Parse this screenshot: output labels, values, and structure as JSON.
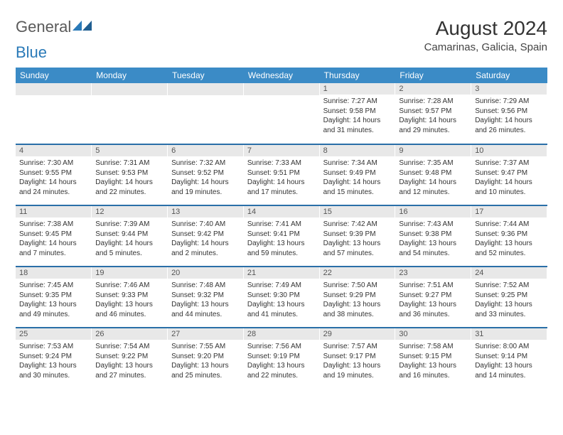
{
  "brand": {
    "part1": "General",
    "part2": "Blue"
  },
  "title": "August 2024",
  "location": "Camarinas, Galicia, Spain",
  "colors": {
    "header_blue": "#3b8bc6",
    "divider_blue": "#2a6fa8",
    "daynum_bg": "#e8e8e8",
    "text": "#333333"
  },
  "weekdays": [
    "Sunday",
    "Monday",
    "Tuesday",
    "Wednesday",
    "Thursday",
    "Friday",
    "Saturday"
  ],
  "weeks": [
    [
      null,
      null,
      null,
      null,
      {
        "n": "1",
        "sr": "7:27 AM",
        "ss": "9:58 PM",
        "dl": "14 hours and 31 minutes."
      },
      {
        "n": "2",
        "sr": "7:28 AM",
        "ss": "9:57 PM",
        "dl": "14 hours and 29 minutes."
      },
      {
        "n": "3",
        "sr": "7:29 AM",
        "ss": "9:56 PM",
        "dl": "14 hours and 26 minutes."
      }
    ],
    [
      {
        "n": "4",
        "sr": "7:30 AM",
        "ss": "9:55 PM",
        "dl": "14 hours and 24 minutes."
      },
      {
        "n": "5",
        "sr": "7:31 AM",
        "ss": "9:53 PM",
        "dl": "14 hours and 22 minutes."
      },
      {
        "n": "6",
        "sr": "7:32 AM",
        "ss": "9:52 PM",
        "dl": "14 hours and 19 minutes."
      },
      {
        "n": "7",
        "sr": "7:33 AM",
        "ss": "9:51 PM",
        "dl": "14 hours and 17 minutes."
      },
      {
        "n": "8",
        "sr": "7:34 AM",
        "ss": "9:49 PM",
        "dl": "14 hours and 15 minutes."
      },
      {
        "n": "9",
        "sr": "7:35 AM",
        "ss": "9:48 PM",
        "dl": "14 hours and 12 minutes."
      },
      {
        "n": "10",
        "sr": "7:37 AM",
        "ss": "9:47 PM",
        "dl": "14 hours and 10 minutes."
      }
    ],
    [
      {
        "n": "11",
        "sr": "7:38 AM",
        "ss": "9:45 PM",
        "dl": "14 hours and 7 minutes."
      },
      {
        "n": "12",
        "sr": "7:39 AM",
        "ss": "9:44 PM",
        "dl": "14 hours and 5 minutes."
      },
      {
        "n": "13",
        "sr": "7:40 AM",
        "ss": "9:42 PM",
        "dl": "14 hours and 2 minutes."
      },
      {
        "n": "14",
        "sr": "7:41 AM",
        "ss": "9:41 PM",
        "dl": "13 hours and 59 minutes."
      },
      {
        "n": "15",
        "sr": "7:42 AM",
        "ss": "9:39 PM",
        "dl": "13 hours and 57 minutes."
      },
      {
        "n": "16",
        "sr": "7:43 AM",
        "ss": "9:38 PM",
        "dl": "13 hours and 54 minutes."
      },
      {
        "n": "17",
        "sr": "7:44 AM",
        "ss": "9:36 PM",
        "dl": "13 hours and 52 minutes."
      }
    ],
    [
      {
        "n": "18",
        "sr": "7:45 AM",
        "ss": "9:35 PM",
        "dl": "13 hours and 49 minutes."
      },
      {
        "n": "19",
        "sr": "7:46 AM",
        "ss": "9:33 PM",
        "dl": "13 hours and 46 minutes."
      },
      {
        "n": "20",
        "sr": "7:48 AM",
        "ss": "9:32 PM",
        "dl": "13 hours and 44 minutes."
      },
      {
        "n": "21",
        "sr": "7:49 AM",
        "ss": "9:30 PM",
        "dl": "13 hours and 41 minutes."
      },
      {
        "n": "22",
        "sr": "7:50 AM",
        "ss": "9:29 PM",
        "dl": "13 hours and 38 minutes."
      },
      {
        "n": "23",
        "sr": "7:51 AM",
        "ss": "9:27 PM",
        "dl": "13 hours and 36 minutes."
      },
      {
        "n": "24",
        "sr": "7:52 AM",
        "ss": "9:25 PM",
        "dl": "13 hours and 33 minutes."
      }
    ],
    [
      {
        "n": "25",
        "sr": "7:53 AM",
        "ss": "9:24 PM",
        "dl": "13 hours and 30 minutes."
      },
      {
        "n": "26",
        "sr": "7:54 AM",
        "ss": "9:22 PM",
        "dl": "13 hours and 27 minutes."
      },
      {
        "n": "27",
        "sr": "7:55 AM",
        "ss": "9:20 PM",
        "dl": "13 hours and 25 minutes."
      },
      {
        "n": "28",
        "sr": "7:56 AM",
        "ss": "9:19 PM",
        "dl": "13 hours and 22 minutes."
      },
      {
        "n": "29",
        "sr": "7:57 AM",
        "ss": "9:17 PM",
        "dl": "13 hours and 19 minutes."
      },
      {
        "n": "30",
        "sr": "7:58 AM",
        "ss": "9:15 PM",
        "dl": "13 hours and 16 minutes."
      },
      {
        "n": "31",
        "sr": "8:00 AM",
        "ss": "9:14 PM",
        "dl": "13 hours and 14 minutes."
      }
    ]
  ],
  "labels": {
    "sunrise": "Sunrise:",
    "sunset": "Sunset:",
    "daylight": "Daylight:"
  }
}
